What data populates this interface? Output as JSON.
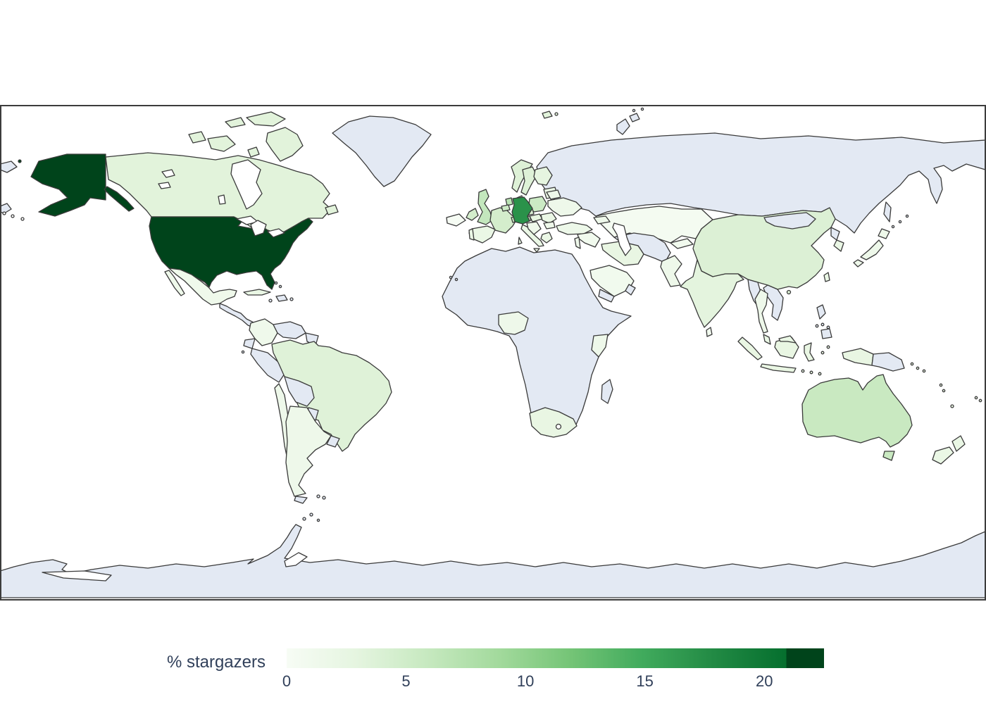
{
  "chart_data": {
    "type": "choropleth",
    "title": "",
    "colorbar_label": "% stargazers",
    "colormap": "Greens",
    "colorbar_ticks": [
      0,
      5,
      10,
      15,
      20
    ],
    "value_range": [
      0,
      22.5
    ],
    "legend_position": "bottom",
    "no_data_color": "#e3e9f3",
    "border_color": "#3a3a3a",
    "frame_color": "#3c3c3c",
    "text_color": "#31405a",
    "gradient_stops": [
      {
        "pos": 0,
        "color": "#f7fcf5"
      },
      {
        "pos": 13,
        "color": "#e5f5e0"
      },
      {
        "pos": 26,
        "color": "#c7e9c0"
      },
      {
        "pos": 40,
        "color": "#a1d99b"
      },
      {
        "pos": 53,
        "color": "#74c476"
      },
      {
        "pos": 66,
        "color": "#41ab5d"
      },
      {
        "pos": 79,
        "color": "#238b45"
      },
      {
        "pos": 93,
        "color": "#056f2e"
      },
      {
        "pos": 93.01,
        "color": "#00441b"
      },
      {
        "pos": 100,
        "color": "#00441b"
      }
    ],
    "countries": {
      "usa": {
        "name": "United States",
        "value": 22.5,
        "color": "#00441b"
      },
      "germany": {
        "name": "Germany",
        "value": 14,
        "color": "#2a924a"
      },
      "australia": {
        "name": "Australia",
        "value": 6,
        "color": "#c9e9c1"
      },
      "netherlands": {
        "name": "Netherlands",
        "value": 5.5,
        "color": "#b9e3b3"
      },
      "uk": {
        "name": "United Kingdom",
        "value": 5,
        "color": "#c3e7bd"
      },
      "poland": {
        "name": "Poland",
        "value": 4.5,
        "color": "#cbeac4"
      },
      "belgium": {
        "name": "Belgium",
        "value": 4.5,
        "color": "#cbeac4"
      },
      "france": {
        "name": "France",
        "value": 4.5,
        "color": "#d4edcc"
      },
      "ireland": {
        "name": "Ireland",
        "value": 4,
        "color": "#d4edcc"
      },
      "denmark": {
        "name": "Denmark",
        "value": 4,
        "color": "#d0ecc8"
      },
      "switzerland": {
        "name": "Switzerland",
        "value": 4,
        "color": "#d0ecc8"
      },
      "china": {
        "name": "China",
        "value": 4,
        "color": "#dcf0d5"
      },
      "brazil": {
        "name": "Brazil",
        "value": 4,
        "color": "#dff2d8"
      },
      "canada": {
        "name": "Canada",
        "value": 3.5,
        "color": "#e2f3db"
      },
      "sweden": {
        "name": "Sweden",
        "value": 3.5,
        "color": "#def1d7"
      },
      "norway": {
        "name": "Norway",
        "value": 3.5,
        "color": "#def1d7"
      },
      "czechia": {
        "name": "Czechia",
        "value": 3.5,
        "color": "#daf0d3"
      },
      "austria": {
        "name": "Austria",
        "value": 3.5,
        "color": "#daf0d3"
      },
      "finland": {
        "name": "Finland",
        "value": 3,
        "color": "#e6f5e0"
      },
      "hungary": {
        "name": "Hungary",
        "value": 3,
        "color": "#e6f5e0"
      },
      "india": {
        "name": "India",
        "value": 3,
        "color": "#e4f4de"
      },
      "south_africa": {
        "name": "South Africa",
        "value": 2.5,
        "color": "#e9f6e3"
      },
      "indonesia": {
        "name": "Indonesia",
        "value": 2.5,
        "color": "#e9f6e3"
      },
      "new_zealand": {
        "name": "New Zealand",
        "value": 2.5,
        "color": "#eaf7e5"
      },
      "spain": {
        "name": "Spain",
        "value": 2.5,
        "color": "#eaf7e5"
      },
      "portugal": {
        "name": "Portugal",
        "value": 2.5,
        "color": "#eaf7e5"
      },
      "italy": {
        "name": "Italy",
        "value": 2.5,
        "color": "#eaf7e5"
      },
      "greece": {
        "name": "Greece",
        "value": 2.5,
        "color": "#eaf7e5"
      },
      "romania": {
        "name": "Romania",
        "value": 2.5,
        "color": "#eaf7e5"
      },
      "baltics": {
        "name": "Baltic states",
        "value": 2.5,
        "color": "#eaf7e5"
      },
      "south_korea": {
        "name": "South Korea",
        "value": 2.5,
        "color": "#eaf7e5"
      },
      "taiwan": {
        "name": "Taiwan",
        "value": 2.5,
        "color": "#eaf7e5"
      },
      "malaysia": {
        "name": "Malaysia",
        "value": 2.5,
        "color": "#eaf7e5"
      },
      "cuba": {
        "name": "Cuba",
        "value": 2.5,
        "color": "#eaf7e5"
      },
      "balkans": {
        "name": "Balkans",
        "value": 2,
        "color": "#eef8ea"
      },
      "ukraine": {
        "name": "Ukraine",
        "value": 2,
        "color": "#eef8ea"
      },
      "belarus": {
        "name": "Belarus",
        "value": 2,
        "color": "#eef8ea"
      },
      "turkey": {
        "name": "Turkey",
        "value": 2,
        "color": "#edf8e9"
      },
      "caucasus": {
        "name": "Caucasus",
        "value": 2,
        "color": "#eef8ea"
      },
      "iran": {
        "name": "Iran",
        "value": 2,
        "color": "#e9f6e3"
      },
      "israel_jordan": {
        "name": "Israel / Jordan",
        "value": 2,
        "color": "#eef8ea"
      },
      "pakistan": {
        "name": "Pakistan",
        "value": 2,
        "color": "#eef8ea"
      },
      "japan": {
        "name": "Japan",
        "value": 2,
        "color": "#eef8ea"
      },
      "thailand": {
        "name": "Thailand",
        "value": 2,
        "color": "#eef8ea"
      },
      "mexico": {
        "name": "Mexico",
        "value": 2,
        "color": "#eff9eb"
      },
      "colombia": {
        "name": "Colombia",
        "value": 2,
        "color": "#eff9eb"
      },
      "argentina": {
        "name": "Argentina",
        "value": 2,
        "color": "#eef8ea"
      },
      "chile": {
        "name": "Chile",
        "value": 2,
        "color": "#eef8ea"
      },
      "nigeria": {
        "name": "Nigeria",
        "value": 2,
        "color": "#eef8ea"
      },
      "kenya": {
        "name": "Kenya",
        "value": 2,
        "color": "#eef8ea"
      },
      "kyrgyz_tajik": {
        "name": "Kyrgyzstan / Tajikistan",
        "value": 1.5,
        "color": "#f1faee"
      },
      "iraq_syria": {
        "name": "Iraq / Syria",
        "value": 1.5,
        "color": "#f1faee"
      },
      "saudi_arabia": {
        "name": "Saudi Arabia",
        "value": 1.5,
        "color": "#f1faee"
      },
      "sri_lanka": {
        "name": "Sri Lanka",
        "value": 1,
        "color": "#f1faee"
      },
      "kazakhstan": {
        "name": "Kazakhstan",
        "value": 1,
        "color": "#f4fbf1"
      },
      "iceland": {
        "name": "Iceland",
        "value": 1,
        "color": "#f6fcf4"
      },
      "pacific_isles": {
        "name": "Pacific islands",
        "value": 2,
        "color": "#e9f6e3"
      },
      "russia": {
        "name": "Russia",
        "value": null,
        "color": "#e3e9f3"
      },
      "mongolia": {
        "name": "Mongolia",
        "value": null,
        "color": "#e3e9f3"
      },
      "greenland": {
        "name": "Greenland",
        "value": null,
        "color": "#e3e9f3"
      },
      "antarctica": {
        "name": "Antarctica",
        "value": null,
        "color": "#e3e9f3"
      },
      "africa_other": {
        "name": "Africa (no data)",
        "value": null,
        "color": "#e3e9f3"
      },
      "madagascar": {
        "name": "Madagascar",
        "value": null,
        "color": "#e3e9f3"
      },
      "venezuela": {
        "name": "Venezuela",
        "value": null,
        "color": "#e3e9f3"
      },
      "guyanas": {
        "name": "Guyanas",
        "value": null,
        "color": "#e3e9f3"
      },
      "ecuador": {
        "name": "Ecuador",
        "value": null,
        "color": "#e3e9f3"
      },
      "peru": {
        "name": "Peru",
        "value": null,
        "color": "#e3e9f3"
      },
      "bolivia": {
        "name": "Bolivia",
        "value": null,
        "color": "#e3e9f3"
      },
      "paraguay": {
        "name": "Paraguay",
        "value": null,
        "color": "#e3e9f3"
      },
      "uruguay": {
        "name": "Uruguay",
        "value": null,
        "color": "#e3e9f3"
      },
      "central_america": {
        "name": "Central America",
        "value": null,
        "color": "#e3e9f3"
      },
      "hispaniola": {
        "name": "Hispaniola",
        "value": null,
        "color": "#e3e9f3"
      },
      "central_asia": {
        "name": "Central Asia",
        "value": null,
        "color": "#e3e9f3"
      },
      "yemen_oman": {
        "name": "Yemen / Oman",
        "value": null,
        "color": "#e3e9f3"
      },
      "myanmar": {
        "name": "Myanmar",
        "value": null,
        "color": "#e3e9f3"
      },
      "indochina": {
        "name": "Vietnam / Laos / Cambodia",
        "value": null,
        "color": "#e3e9f3"
      },
      "north_korea": {
        "name": "North Korea",
        "value": null,
        "color": "#e3e9f3"
      },
      "philippines": {
        "name": "Philippines",
        "value": null,
        "color": "#e3e9f3"
      },
      "papua_new_guinea": {
        "name": "Papua New Guinea",
        "value": null,
        "color": "#e3e9f3"
      },
      "sakhalin": {
        "name": "Sakhalin",
        "value": null,
        "color": "#e3e9f3"
      },
      "novaya_zemlya": {
        "name": "Novaya Zemlya",
        "value": null,
        "color": "#e3e9f3"
      },
      "chukotka_wrap": {
        "name": "Chukotka (wrap)",
        "value": null,
        "color": "#e3e9f3"
      },
      "tierra_del_fuego": {
        "name": "Tierra del Fuego",
        "value": null,
        "color": "#e3e9f3"
      },
      "svalbard": {
        "name": "Svalbard",
        "value": null,
        "color": "#e2f3db"
      }
    }
  }
}
